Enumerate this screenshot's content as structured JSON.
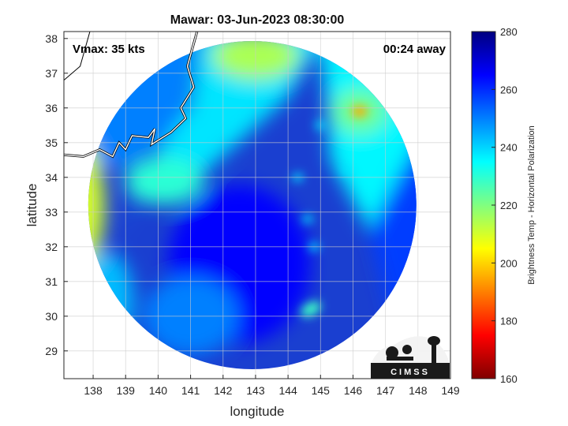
{
  "chart_data": {
    "type": "heatmap",
    "title": "Mawar: 03-Jun-2023 08:30:00",
    "xlabel": "longitude",
    "ylabel": "latitude",
    "xlim": [
      137.1,
      149.0
    ],
    "ylim": [
      28.2,
      38.2
    ],
    "xticks": [
      "138",
      "139",
      "140",
      "141",
      "142",
      "143",
      "144",
      "145",
      "146",
      "147",
      "148",
      "149"
    ],
    "yticks": [
      "29",
      "30",
      "31",
      "32",
      "33",
      "34",
      "35",
      "36",
      "37",
      "38"
    ],
    "grid": true,
    "annotations": {
      "vmax": "Vmax: 35 kts",
      "time_away": "00:24 away"
    },
    "colorbar": {
      "label": "Brightness Temp - Horizontal Polarization",
      "range": [
        160,
        280
      ],
      "ticks": [
        "160",
        "180",
        "200",
        "220",
        "240",
        "260",
        "280"
      ],
      "colormap": "jet"
    },
    "swath": {
      "center_lon": 142.9,
      "center_lat": 33.2,
      "radius_deg": 5.05
    },
    "features": [
      {
        "name": "land-warm",
        "lon": 137.4,
        "lat": 33.2,
        "value": 210
      },
      {
        "name": "northern-band",
        "lon": 143.0,
        "lat": 37.5,
        "value": 215
      },
      {
        "name": "sea-cold-core",
        "lon": 142.5,
        "lat": 31.5,
        "value": 265
      },
      {
        "name": "convection-east",
        "lon": 146.2,
        "lat": 35.9,
        "value": 195
      },
      {
        "name": "cell-south",
        "lon": 144.7,
        "lat": 30.2,
        "value": 228
      }
    ]
  },
  "logo": {
    "text": "CIMSS"
  },
  "colors": {
    "ocean": "#1a3fd0",
    "grid": "#cccccc",
    "coast": "#ffffff"
  }
}
